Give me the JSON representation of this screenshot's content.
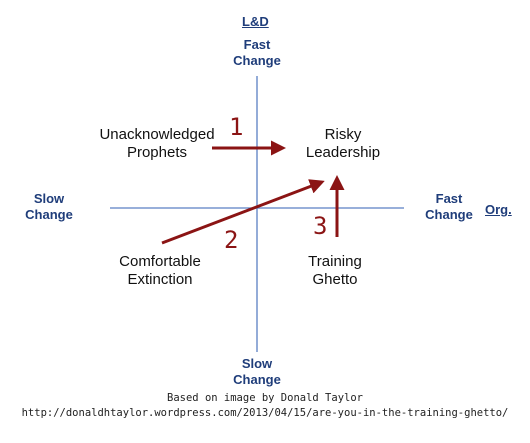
{
  "axes": {
    "vertical": {
      "name": "L&D",
      "top_label": [
        "Fast",
        "Change"
      ],
      "bottom_label": [
        "Slow",
        "Change"
      ]
    },
    "horizontal": {
      "name": "Org.",
      "left_label": [
        "Slow",
        "Change"
      ],
      "right_label": [
        "Fast",
        "Change"
      ]
    }
  },
  "quadrants": {
    "top_left": [
      "Unacknowledged",
      "Prophets"
    ],
    "top_right": [
      "Risky",
      "Leadership"
    ],
    "bottom_left": [
      "Comfortable",
      "Extinction"
    ],
    "bottom_right": [
      "Training",
      "Ghetto"
    ]
  },
  "arrows": [
    {
      "number": "1"
    },
    {
      "number": "2"
    },
    {
      "number": "3"
    }
  ],
  "caption": {
    "line1": "Based on image by Donald Taylor",
    "line2": "http://donaldhtaylor.wordpress.com/2013/04/15/are-you-in-the-training-ghetto/"
  },
  "colors": {
    "axis": "#5b7fc4",
    "arrow": "#8b1414",
    "label": "#1f3d7a"
  }
}
